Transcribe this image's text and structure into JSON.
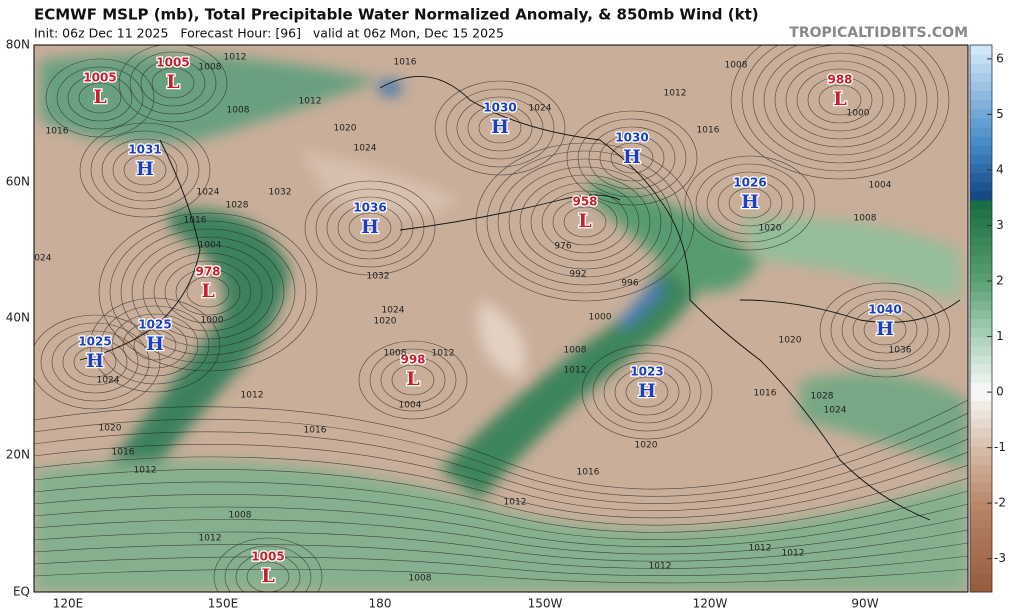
{
  "header": {
    "title": "ECMWF MSLP (mb), Total Precipitable Water Normalized Anomaly, & 850mb Wind (kt)",
    "subtitle": "Init: 06z Dec 11 2025   Forecast Hour: [96]   valid at 06z Mon, Dec 15 2025",
    "watermark": "TROPICALTIDBITS.COM"
  },
  "map": {
    "lat_labels": [
      "80N",
      "60N",
      "40N",
      "20N",
      "EQ"
    ],
    "lon_labels": [
      "120E",
      "150E",
      "180",
      "150W",
      "120W",
      "90W"
    ],
    "centers": [
      {
        "type": "L",
        "value": "1005"
      },
      {
        "type": "L",
        "value": "1005"
      },
      {
        "type": "H",
        "value": "1031"
      },
      {
        "type": "H",
        "value": "1036"
      },
      {
        "type": "L",
        "value": "978"
      },
      {
        "type": "H",
        "value": "1025"
      },
      {
        "type": "H",
        "value": "1025"
      },
      {
        "type": "L",
        "value": "998"
      },
      {
        "type": "H",
        "value": "1030"
      },
      {
        "type": "H",
        "value": "1030"
      },
      {
        "type": "L",
        "value": "958"
      },
      {
        "type": "H",
        "value": "1026"
      },
      {
        "type": "L",
        "value": "988"
      },
      {
        "type": "H",
        "value": "1040"
      },
      {
        "type": "H",
        "value": "1023"
      },
      {
        "type": "L",
        "value": "1005"
      }
    ],
    "isobar_labels": [
      "1012",
      "1008",
      "1016",
      "1012",
      "1008",
      "1016",
      "1020",
      "1024",
      "1024",
      "1012",
      "1016",
      "1008",
      "1000",
      "1004",
      "1008",
      "1020",
      "1024",
      "1028",
      "1032",
      "1016",
      "1004",
      "1000",
      "1024",
      "976",
      "992",
      "996",
      "1000",
      "1032",
      "1024",
      "1020",
      "1008",
      "1012",
      "1004",
      "1012",
      "1016",
      "1016",
      "1012",
      "1020",
      "1024",
      "1008",
      "1012",
      "1020",
      "1016",
      "1012",
      "1008",
      "1012",
      "1012",
      "1012",
      "1012",
      "1008",
      "1024",
      "1028",
      "1036",
      "1020",
      "1016"
    ]
  },
  "colorbar": {
    "ticks": [
      6,
      5,
      4,
      3,
      2,
      1,
      0,
      -1,
      -2,
      -3
    ],
    "lim": [
      -3.6,
      6.25
    ]
  }
}
